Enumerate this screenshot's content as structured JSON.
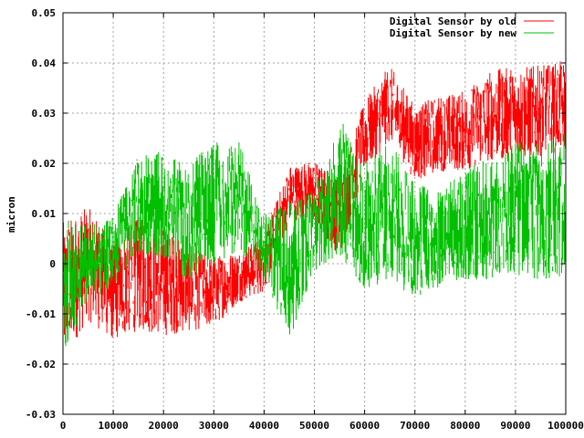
{
  "chart_data": {
    "type": "line",
    "title": "",
    "xlabel": "",
    "ylabel": "micron",
    "xlim": [
      0,
      100000
    ],
    "ylim": [
      -0.03,
      0.05
    ],
    "grid": true,
    "legend_position": "top-right",
    "x_ticks": [
      0,
      10000,
      20000,
      30000,
      40000,
      50000,
      60000,
      70000,
      80000,
      90000,
      100000
    ],
    "x_tick_labels": [
      "0",
      "10000",
      "20000",
      "30000",
      "40000",
      "50000",
      "60000",
      "70000",
      "80000",
      "90000",
      "100000"
    ],
    "y_ticks": [
      -0.03,
      -0.02,
      -0.01,
      0,
      0.01,
      0.02,
      0.03,
      0.04,
      0.05
    ],
    "y_tick_labels": [
      "-0.03",
      "-0.02",
      "-0.01",
      "0",
      "0.01",
      "0.02",
      "0.03",
      "0.04",
      "0.05"
    ],
    "series": [
      {
        "name": "Digital Sensor by old",
        "color": "#ff0000",
        "x": [
          0,
          5000,
          10000,
          15000,
          20000,
          25000,
          30000,
          35000,
          40000,
          45000,
          50000,
          55000,
          60000,
          65000,
          70000,
          75000,
          80000,
          85000,
          90000,
          95000,
          100000
        ],
        "lower": [
          -0.02,
          -0.012,
          -0.016,
          -0.014,
          -0.015,
          -0.014,
          -0.013,
          -0.008,
          -0.006,
          0.008,
          0.008,
          0.001,
          0.018,
          0.024,
          0.016,
          0.018,
          0.018,
          0.02,
          0.02,
          0.021,
          0.022
        ],
        "upper": [
          0.009,
          0.012,
          0.005,
          0.01,
          0.008,
          0.004,
          0.002,
          0.003,
          0.006,
          0.02,
          0.021,
          0.017,
          0.033,
          0.04,
          0.032,
          0.034,
          0.035,
          0.039,
          0.04,
          0.04,
          0.041
        ]
      },
      {
        "name": "Digital Sensor by new",
        "color": "#00c000",
        "x": [
          0,
          5000,
          10000,
          15000,
          20000,
          25000,
          30000,
          35000,
          40000,
          45000,
          50000,
          55000,
          60000,
          65000,
          70000,
          75000,
          80000,
          85000,
          90000,
          95000,
          100000
        ],
        "lower": [
          -0.019,
          -0.008,
          -0.005,
          0.002,
          0.0,
          -0.004,
          -0.001,
          0.002,
          -0.003,
          -0.016,
          -0.002,
          0.001,
          -0.006,
          -0.004,
          -0.008,
          -0.005,
          -0.004,
          -0.004,
          -0.003,
          -0.004,
          -0.004
        ],
        "upper": [
          0.01,
          0.008,
          0.01,
          0.022,
          0.023,
          0.02,
          0.026,
          0.025,
          0.01,
          0.013,
          0.016,
          0.03,
          0.021,
          0.025,
          0.017,
          0.015,
          0.02,
          0.022,
          0.025,
          0.025,
          0.027
        ]
      }
    ]
  }
}
